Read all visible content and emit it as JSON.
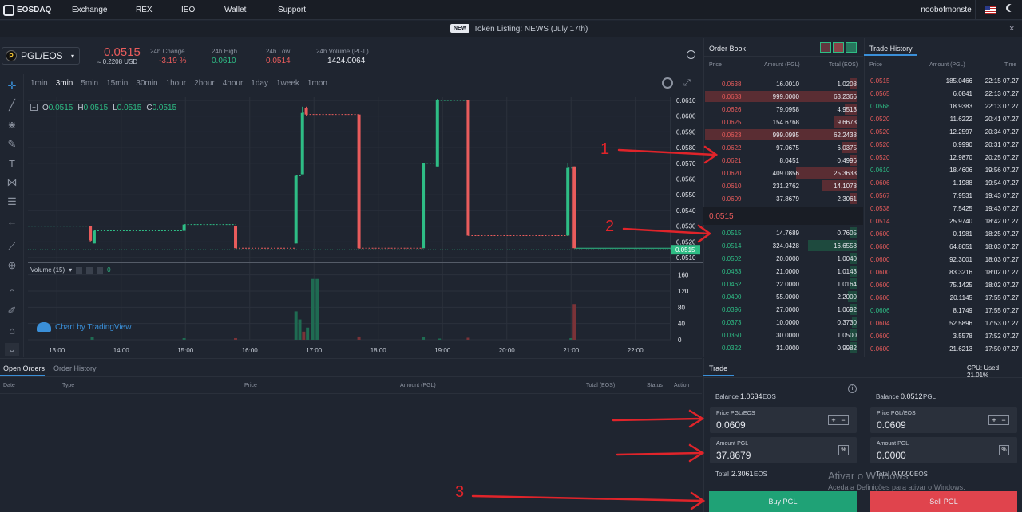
{
  "nav": {
    "logo": "EOSDAQ",
    "items": [
      "Exchange",
      "REX",
      "IEO",
      "Wallet",
      "Support"
    ],
    "user": "noobofmonste"
  },
  "banner": {
    "badge": "NEW",
    "text": "Token Listing: NEWS (July 17th)",
    "close": "×"
  },
  "ticker": {
    "pair": "PGL/EOS",
    "price": "0.0515",
    "price_usd": "≈ 0.2208 USD",
    "change_label": "24h Change",
    "change": "-3.19 %",
    "high_label": "24h High",
    "high": "0.0610",
    "low_label": "24h Low",
    "low": "0.0514",
    "vol_label": "24h Volume (PGL)",
    "vol": "1424.0064"
  },
  "intervals": [
    "1min",
    "3min",
    "5min",
    "15min",
    "30min",
    "1hour",
    "2hour",
    "4hour",
    "1day",
    "1week",
    "1mon"
  ],
  "chart_data": {
    "type": "candlestick",
    "ohlc_label": {
      "o": "0.0515",
      "h": "0.0515",
      "l": "0.0515",
      "c": "0.0515"
    },
    "x_ticks": [
      "13:00",
      "14:00",
      "15:00",
      "16:00",
      "17:00",
      "18:00",
      "19:00",
      "20:00",
      "21:00",
      "22:00"
    ],
    "y_ticks": [
      "0.0610",
      "0.0600",
      "0.0590",
      "0.0580",
      "0.0570",
      "0.0560",
      "0.0550",
      "0.0540",
      "0.0530",
      "0.0520",
      "0.0515",
      "0.0510"
    ],
    "ylim": [
      0.0508,
      0.0612
    ],
    "candles": [
      {
        "t": 13.52,
        "o": 0.053,
        "c": 0.0521,
        "h": 0.053,
        "l": 0.052,
        "d": "down"
      },
      {
        "t": 13.58,
        "o": 0.0519,
        "c": 0.0527,
        "h": 0.0527,
        "l": 0.0519,
        "d": "up"
      },
      {
        "t": 14.98,
        "o": 0.0527,
        "c": 0.0531,
        "h": 0.0531,
        "l": 0.0527,
        "d": "up"
      },
      {
        "t": 15.78,
        "o": 0.053,
        "c": 0.0516,
        "h": 0.053,
        "l": 0.0516,
        "d": "down"
      },
      {
        "t": 16.72,
        "o": 0.0519,
        "c": 0.0562,
        "h": 0.0562,
        "l": 0.0519,
        "d": "up"
      },
      {
        "t": 16.82,
        "o": 0.0563,
        "c": 0.0602,
        "h": 0.0606,
        "l": 0.0563,
        "d": "up"
      },
      {
        "t": 16.88,
        "o": 0.0605,
        "c": 0.0601,
        "h": 0.0606,
        "l": 0.06,
        "d": "down"
      },
      {
        "t": 17.7,
        "o": 0.0601,
        "c": 0.0516,
        "h": 0.0601,
        "l": 0.0516,
        "d": "down"
      },
      {
        "t": 18.7,
        "o": 0.0516,
        "c": 0.057,
        "h": 0.057,
        "l": 0.0516,
        "d": "up"
      },
      {
        "t": 18.92,
        "o": 0.0568,
        "c": 0.061,
        "h": 0.0611,
        "l": 0.0568,
        "d": "up"
      },
      {
        "t": 19.4,
        "o": 0.061,
        "c": 0.0524,
        "h": 0.061,
        "l": 0.0524,
        "d": "down"
      },
      {
        "t": 20.95,
        "o": 0.0524,
        "c": 0.0567,
        "h": 0.057,
        "l": 0.0524,
        "d": "up"
      },
      {
        "t": 21.05,
        "o": 0.0568,
        "c": 0.0516,
        "h": 0.0568,
        "l": 0.0516,
        "d": "down"
      }
    ],
    "volume_label": "Volume (15)",
    "volume_value": "0",
    "vol_ticks": [
      "160",
      "120",
      "80",
      "40",
      "0"
    ],
    "vol_max": 175,
    "volumes": [
      {
        "t": 13.55,
        "v": 6,
        "d": "g"
      },
      {
        "t": 14.98,
        "v": 4,
        "d": "g"
      },
      {
        "t": 15.78,
        "v": 4,
        "d": "r"
      },
      {
        "t": 16.72,
        "v": 70,
        "d": "g"
      },
      {
        "t": 16.78,
        "v": 50,
        "d": "g"
      },
      {
        "t": 16.84,
        "v": 20,
        "d": "r"
      },
      {
        "t": 16.9,
        "v": 30,
        "d": "g"
      },
      {
        "t": 16.98,
        "v": 150,
        "d": "g"
      },
      {
        "t": 17.05,
        "v": 150,
        "d": "g"
      },
      {
        "t": 17.7,
        "v": 8,
        "d": "r"
      },
      {
        "t": 18.7,
        "v": 6,
        "d": "g"
      },
      {
        "t": 18.95,
        "v": 3,
        "d": "g"
      },
      {
        "t": 19.4,
        "v": 5,
        "d": "r"
      },
      {
        "t": 21.0,
        "v": 4,
        "d": "g"
      },
      {
        "t": 21.05,
        "v": 88,
        "d": "r"
      }
    ],
    "watermark": "Chart by TradingView",
    "current": "0.0515"
  },
  "orderbook": {
    "title": "Order Book",
    "cols": [
      "Price",
      "Amount (PGL)",
      "Total (EOS)"
    ],
    "asks": [
      [
        "0.0638",
        "16.0010",
        "1.0208",
        0.04
      ],
      [
        "0.0633",
        "999.0000",
        "63.2366",
        1.0
      ],
      [
        "0.0626",
        "79.0958",
        "4.9513",
        0.08
      ],
      [
        "0.0625",
        "154.6768",
        "9.6673",
        0.15
      ],
      [
        "0.0623",
        "999.0995",
        "62.2438",
        1.0
      ],
      [
        "0.0622",
        "97.0675",
        "6.0375",
        0.1
      ],
      [
        "0.0621",
        "8.0451",
        "0.4996",
        0.05
      ],
      [
        "0.0620",
        "409.0856",
        "25.3633",
        0.4
      ],
      [
        "0.0610",
        "231.2762",
        "14.1078",
        0.23
      ],
      [
        "0.0609",
        "37.8679",
        "2.3061",
        0.04
      ]
    ],
    "mid": "0.0515",
    "bids": [
      [
        "0.0515",
        "14.7689",
        "0.7605",
        0.05
      ],
      [
        "0.0514",
        "324.0428",
        "16.6558",
        0.32
      ],
      [
        "0.0502",
        "20.0000",
        "1.0040",
        0.05
      ],
      [
        "0.0483",
        "21.0000",
        "1.0143",
        0.04
      ],
      [
        "0.0462",
        "22.0000",
        "1.0164",
        0.04
      ],
      [
        "0.0400",
        "55.0000",
        "2.2000",
        0.06
      ],
      [
        "0.0396",
        "27.0000",
        "1.0692",
        0.04
      ],
      [
        "0.0373",
        "10.0000",
        "0.3730",
        0.03
      ],
      [
        "0.0350",
        "30.0000",
        "1.0500",
        0.04
      ],
      [
        "0.0322",
        "31.0000",
        "0.9982",
        0.04
      ]
    ]
  },
  "tradehistory": {
    "title": "Trade History",
    "cols": [
      "Price",
      "Amount (PGL)",
      "Time"
    ],
    "rows": [
      [
        "0.0515",
        "185.0466",
        "22:15 07.27",
        "r"
      ],
      [
        "0.0565",
        "6.0841",
        "22:13 07.27",
        "r"
      ],
      [
        "0.0568",
        "18.9383",
        "22:13 07.27",
        "g"
      ],
      [
        "0.0520",
        "11.6222",
        "20:41 07.27",
        "r"
      ],
      [
        "0.0520",
        "12.2597",
        "20:34 07.27",
        "r"
      ],
      [
        "0.0520",
        "0.9990",
        "20:31 07.27",
        "r"
      ],
      [
        "0.0520",
        "12.9870",
        "20:25 07.27",
        "r"
      ],
      [
        "0.0610",
        "18.4606",
        "19:56 07.27",
        "g"
      ],
      [
        "0.0606",
        "1.1988",
        "19:54 07.27",
        "r"
      ],
      [
        "0.0567",
        "7.9531",
        "19:43 07.27",
        "r"
      ],
      [
        "0.0538",
        "7.5425",
        "19:43 07.27",
        "r"
      ],
      [
        "0.0514",
        "25.9740",
        "18:42 07.27",
        "r"
      ],
      [
        "0.0600",
        "0.1981",
        "18:25 07.27",
        "r"
      ],
      [
        "0.0600",
        "64.8051",
        "18:03 07.27",
        "r"
      ],
      [
        "0.0600",
        "92.3001",
        "18:03 07.27",
        "r"
      ],
      [
        "0.0600",
        "83.3216",
        "18:02 07.27",
        "r"
      ],
      [
        "0.0600",
        "75.1425",
        "18:02 07.27",
        "r"
      ],
      [
        "0.0600",
        "20.1145",
        "17:55 07.27",
        "r"
      ],
      [
        "0.0606",
        "8.1749",
        "17:55 07.27",
        "g"
      ],
      [
        "0.0604",
        "52.5896",
        "17:53 07.27",
        "r"
      ],
      [
        "0.0600",
        "3.5578",
        "17:52 07.27",
        "r"
      ],
      [
        "0.0600",
        "21.6213",
        "17:50 07.27",
        "r"
      ]
    ]
  },
  "orders": {
    "tabs": [
      "Open Orders",
      "Order History"
    ],
    "cols": [
      "Date",
      "Type",
      "Price",
      "Amount (PGL)",
      "Total (EOS)",
      "Status",
      "Action"
    ]
  },
  "trade": {
    "title": "Trade",
    "cpu": "CPU: Used 21.01%",
    "buy": {
      "balance_label": "Balance",
      "balance": "1.0634",
      "balance_unit": "EOS",
      "price_label": "Price",
      "price_unit": "PGL/EOS",
      "price": "0.0609",
      "amount_label": "Amount",
      "amount_unit": "PGL",
      "amount": "37.8679",
      "total_label": "Total",
      "total": "2.3061",
      "total_unit": "EOS",
      "button": "Buy PGL"
    },
    "sell": {
      "balance_label": "Balance",
      "balance": "0.0512",
      "balance_unit": "PGL",
      "price_label": "Price",
      "price_unit": "PGL/EOS",
      "price": "0.0609",
      "amount_label": "Amount",
      "amount_unit": "PGL",
      "amount": "0.0000",
      "total_label": "Total",
      "total": "0.0000",
      "total_unit": "EOS",
      "button": "Sell PGL"
    }
  },
  "windows_watermark": {
    "line1": "Ativar o Windows",
    "line2": "Aceda a Definições para ativar o Windows."
  },
  "annotations": [
    "1",
    "2",
    "3"
  ],
  "colors": {
    "up": "#2ebd85",
    "down": "#e95c5c",
    "bg": "#1f2530",
    "buy": "#1fa276",
    "sell": "#e0444d"
  }
}
